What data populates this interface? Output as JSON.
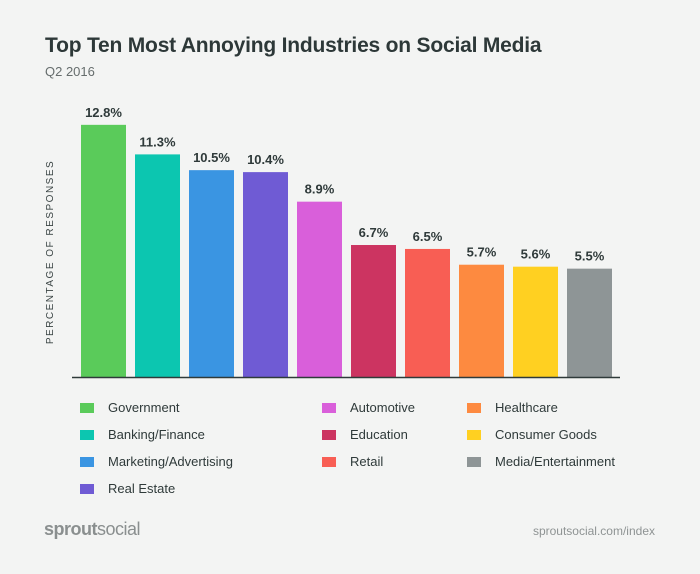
{
  "chart_data": {
    "type": "bar",
    "title": "Top Ten Most Annoying Industries on Social Media",
    "subtitle": "Q2 2016",
    "ylabel": "PERCENTAGE OF RESPONSES",
    "xlabel": "",
    "ylim": [
      0,
      13.5
    ],
    "grid": false,
    "legend_placement": "bottom",
    "categories": [
      "Government",
      "Banking/Finance",
      "Marketing/Advertising",
      "Real Estate",
      "Automotive",
      "Education",
      "Retail",
      "Healthcare",
      "Consumer Goods",
      "Media/Entertainment"
    ],
    "values": [
      12.8,
      11.3,
      10.5,
      10.4,
      8.9,
      6.7,
      6.5,
      5.7,
      5.6,
      5.5
    ],
    "data_labels": [
      "12.8%",
      "11.3%",
      "10.5%",
      "10.4%",
      "8.9%",
      "6.7%",
      "6.5%",
      "5.7%",
      "5.6%",
      "5.5%"
    ],
    "colors": [
      "#5acb5a",
      "#0cc6b0",
      "#3a95e2",
      "#6f5bd4",
      "#d95fda",
      "#cc3461",
      "#f85e54",
      "#fd8a40",
      "#ffd021",
      "#8e9596"
    ]
  },
  "footer": {
    "logo_bold": "sprout",
    "logo_light": "social",
    "url": "sproutsocial.com/index"
  }
}
